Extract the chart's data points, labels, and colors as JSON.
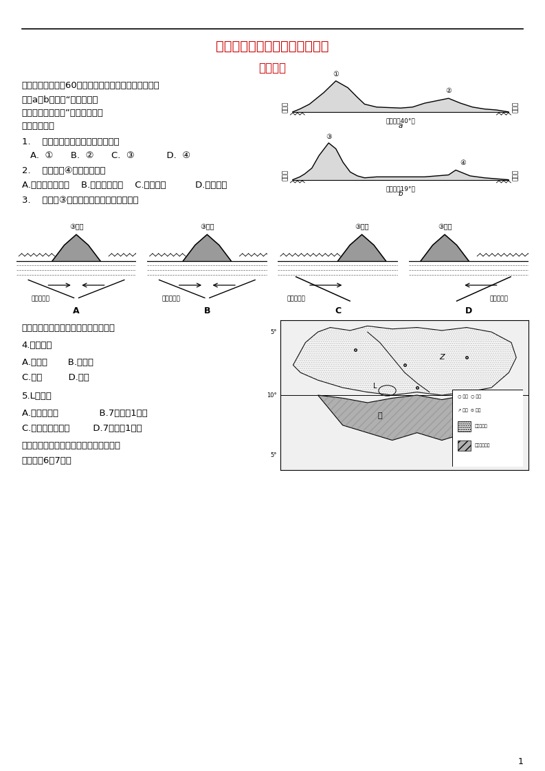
{
  "title1": "射洪中学高级高二下期入学考试",
  "title2": "地理试题",
  "bg_color": "#ffffff",
  "title_color": "#cc0000",
  "page_number": "1"
}
